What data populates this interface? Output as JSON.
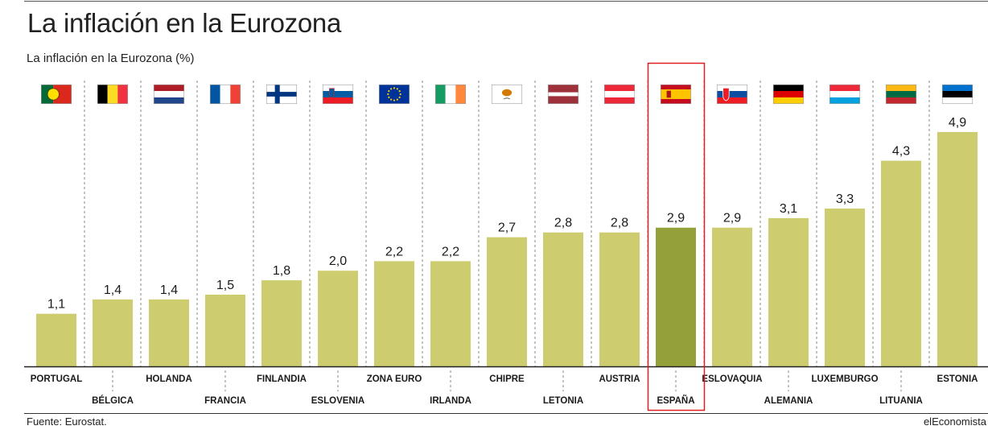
{
  "header": {
    "title": "La inflación en la Eurozona",
    "subtitle": "La inflación en la Eurozona (%)"
  },
  "footer": {
    "source": "Fuente: Eurostat.",
    "brand": "elEconomista"
  },
  "colors": {
    "bar": "#cdcd6f",
    "bar_highlight": "#94a03a",
    "highlight_frame": "#e02020",
    "divider": "#888888"
  },
  "highlight": "ESPAÑA",
  "chart_data": {
    "type": "bar",
    "categories": [
      "PORTUGAL",
      "BÉLGICA",
      "HOLANDA",
      "FRANCIA",
      "FINLANDIA",
      "ESLOVENIA",
      "ZONA EURO",
      "IRLANDA",
      "CHIPRE",
      "LETONIA",
      "AUSTRIA",
      "ESPAÑA",
      "ESLOVAQUIA",
      "ALEMANIA",
      "LUXEMBURGO",
      "LITUANIA",
      "ESTONIA"
    ],
    "values": [
      1.1,
      1.4,
      1.4,
      1.5,
      1.8,
      2.0,
      2.2,
      2.2,
      2.7,
      2.8,
      2.8,
      2.9,
      2.9,
      3.1,
      3.3,
      4.3,
      4.9
    ],
    "value_labels": [
      "1,1",
      "1,4",
      "1,4",
      "1,5",
      "1,8",
      "2,0",
      "2,2",
      "2,2",
      "2,7",
      "2,8",
      "2,8",
      "2,9",
      "2,9",
      "3,1",
      "3,3",
      "4,3",
      "4,9"
    ],
    "flags": [
      "portugal-flag",
      "belgium-flag",
      "netherlands-flag",
      "france-flag",
      "finland-flag",
      "slovenia-flag",
      "eu-flag",
      "ireland-flag",
      "cyprus-flag",
      "latvia-flag",
      "austria-flag",
      "spain-flag",
      "slovakia-flag",
      "germany-flag",
      "luxembourg-flag",
      "lithuania-flag",
      "estonia-flag"
    ],
    "ylim": [
      0,
      5
    ],
    "grid": false,
    "legend": "none"
  }
}
